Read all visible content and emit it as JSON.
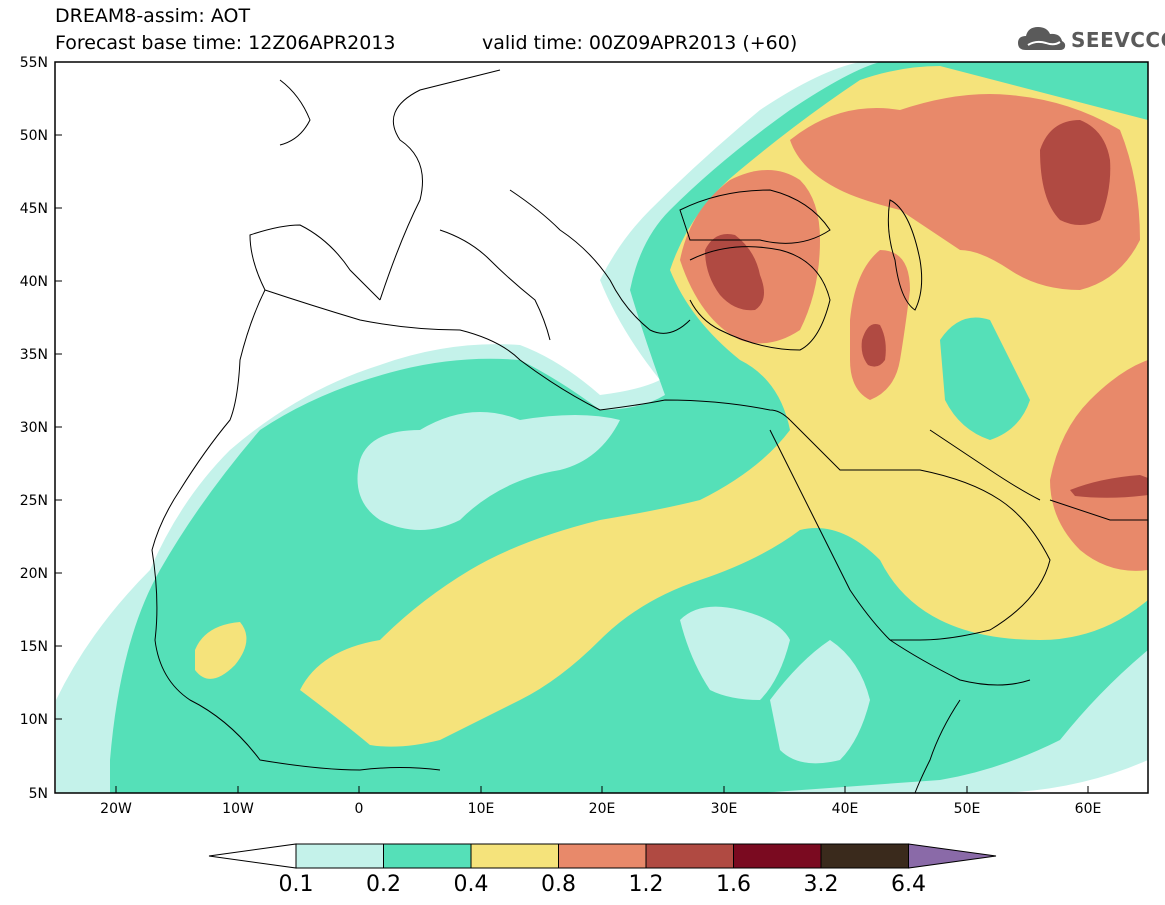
{
  "header": {
    "line1": "DREAM8-assim: AOT",
    "line2": "Forecast base time: 12Z06APR2013",
    "line3": "valid time: 00Z09APR2013 (+60)"
  },
  "logo": {
    "text": "SEEVCCC",
    "icon": "cloud-icon"
  },
  "axes": {
    "lat_labels": [
      "55N",
      "50N",
      "45N",
      "40N",
      "35N",
      "30N",
      "25N",
      "20N",
      "15N",
      "10N",
      "5N"
    ],
    "lon_labels": [
      "20W",
      "10W",
      "0",
      "10E",
      "20E",
      "30E",
      "40E",
      "50E",
      "60E"
    ]
  },
  "colorbar": {
    "labels": [
      "0.1",
      "0.2",
      "0.4",
      "0.8",
      "1.2",
      "1.6",
      "3.2",
      "6.4"
    ],
    "colors": [
      "#c4f2ea",
      "#55e0b8",
      "#f5e37b",
      "#e8896a",
      "#b04a42",
      "#7a0a20",
      "#3a2a1c",
      "#8a6aa8"
    ]
  },
  "colors": {
    "ocean": "#ffffff",
    "coast": "#000000"
  }
}
